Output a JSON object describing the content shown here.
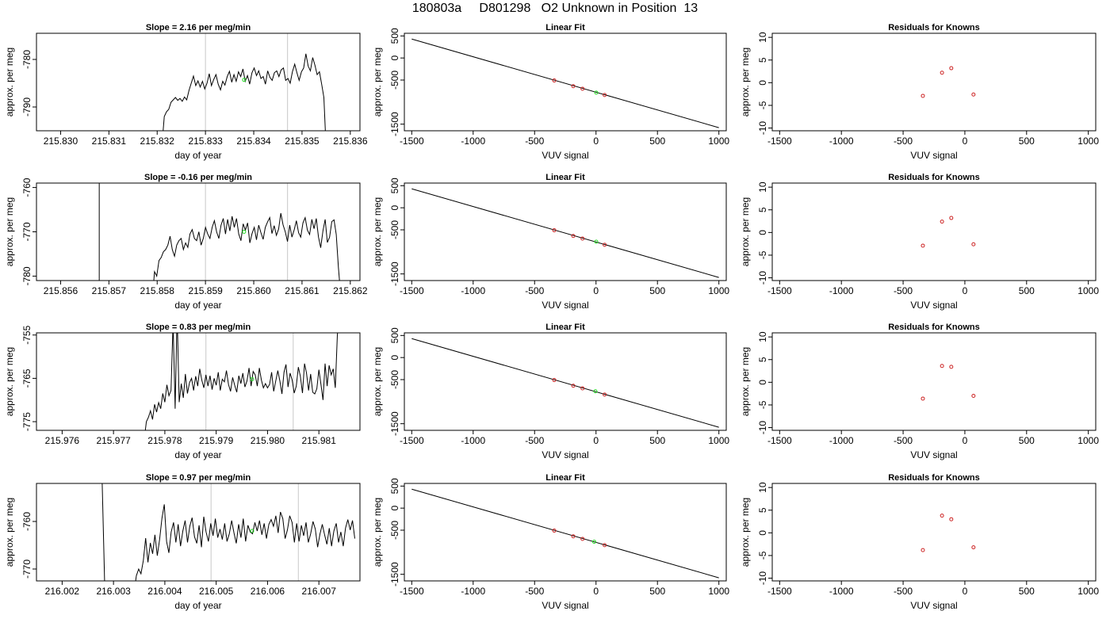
{
  "header": {
    "title": "180803a     D801298   O2 Unknown in Position  13"
  },
  "chart_data": [
    {
      "type": "line",
      "panel": "time-series",
      "row": 0,
      "title": "Slope =  2.16  per meg/min",
      "xlabel": "day of year",
      "ylabel": "approx. per meg",
      "xlim": [
        215.8295,
        215.8362
      ],
      "ylim": [
        -795.0,
        -774.5
      ],
      "xticks": [
        215.83,
        215.831,
        215.832,
        215.833,
        215.834,
        215.835,
        215.836
      ],
      "xtick_labels": [
        "215.830",
        "215.831",
        "215.832",
        "215.833",
        "215.834",
        "215.835",
        "215.836"
      ],
      "yticks": [
        -780,
        -790
      ],
      "ytick_labels": [
        "-780",
        "-790"
      ],
      "vlines": [
        215.833,
        215.8347
      ],
      "x_start": 215.8321,
      "x_end": 215.8355,
      "y": [
        -798,
        -792,
        -791,
        -790.5,
        -789,
        -788.5,
        -788,
        -788.6,
        -788.2,
        -788.8,
        -787.9,
        -788.5,
        -786.5,
        -785,
        -783.5,
        -785.5,
        -784.5,
        -785.8,
        -784.6,
        -786.2,
        -785,
        -783,
        -785.5,
        -784.2,
        -783.2,
        -785.2,
        -786.4,
        -784.6,
        -785.4,
        -783.6,
        -782.5,
        -784.8,
        -783.2,
        -784.6,
        -782.6,
        -783.6,
        -782,
        -784.6,
        -783.4,
        -785.2,
        -782.8,
        -781.8,
        -783.4,
        -782.4,
        -784,
        -783.6,
        -785.2,
        -782.4,
        -783.8,
        -784.4,
        -782.8,
        -782.4,
        -783.6,
        -782.2,
        -781.8,
        -784.4,
        -784,
        -785,
        -782.6,
        -781,
        -782.8,
        -784.4,
        -782.6,
        -781.8,
        -778.8,
        -781.4,
        -782.4,
        -779.6,
        -781.2,
        -783.2,
        -782.6,
        -785.2,
        -788,
        -799
      ],
      "x_end_drop": 215.83555,
      "marker": {
        "x": 215.8338,
        "y": -784.3,
        "color": "#22dd22"
      }
    },
    {
      "type": "scatter",
      "panel": "linear-fit",
      "row": 0,
      "title": "Linear Fit",
      "xlabel": "VUV signal",
      "ylabel": "approx. per meg",
      "xlim": [
        -1560,
        1060
      ],
      "ylim": [
        -1650,
        560
      ],
      "xticks": [
        -1500,
        -1000,
        -500,
        0,
        500,
        1000
      ],
      "xtick_labels": [
        "-1500",
        "-1000",
        "-500",
        "0",
        "500",
        "1000"
      ],
      "yticks": [
        500,
        0,
        -500,
        -1500
      ],
      "ytick_labels": [
        "500",
        "0",
        "-500",
        "-1500"
      ],
      "fit_line": {
        "x": [
          -1500,
          1000
        ],
        "y": [
          430,
          -1580
        ]
      },
      "points": {
        "x": [
          -340,
          -185,
          -110,
          70
        ],
        "y": [
          -510,
          -640,
          -698,
          -840
        ],
        "color": "#cc2222"
      },
      "marker": {
        "x": 2,
        "y": -786,
        "color": "#22dd22"
      }
    },
    {
      "type": "scatter",
      "panel": "residuals",
      "row": 0,
      "title": "Residuals for Knowns",
      "xlabel": "VUV signal",
      "ylabel": "approx. per meg",
      "xlim": [
        -1560,
        1060
      ],
      "ylim": [
        -10.6,
        10.9
      ],
      "xticks": [
        -1500,
        -1000,
        -500,
        0,
        500,
        1000
      ],
      "xtick_labels": [
        "-1500",
        "-1000",
        "-500",
        "0",
        "500",
        "1000"
      ],
      "yticks": [
        10,
        5,
        0,
        -5,
        -10
      ],
      "ytick_labels": [
        "10",
        "5",
        "0",
        "-5",
        "-10"
      ],
      "points": {
        "x": [
          -340,
          -185,
          -110,
          70
        ],
        "y": [
          -2.9,
          2.2,
          3.2,
          -2.6
        ],
        "color": "#cc2222"
      }
    },
    {
      "type": "line",
      "panel": "time-series",
      "row": 1,
      "title": "Slope =  -0.16  per meg/min",
      "xlabel": "day of year",
      "ylabel": "approx. per meg",
      "xlim": [
        215.8555,
        215.8622
      ],
      "ylim": [
        -781.0,
        -759.0
      ],
      "xticks": [
        215.856,
        215.857,
        215.858,
        215.859,
        215.86,
        215.861,
        215.862
      ],
      "xtick_labels": [
        "215.856",
        "215.857",
        "215.858",
        "215.859",
        "215.860",
        "215.861",
        "215.862"
      ],
      "yticks": [
        -760,
        -770,
        -780
      ],
      "ytick_labels": [
        "-760",
        "-770",
        "-780"
      ],
      "vlines": [
        215.859,
        215.8607
      ],
      "spike_x": 215.8568,
      "x_start": 215.8579,
      "x_end": 215.8618,
      "y": [
        -785,
        -779,
        -780,
        -776.5,
        -775.8,
        -774.5,
        -774,
        -773,
        -771,
        -774,
        -775.5,
        -773,
        -772,
        -771.5,
        -774,
        -772.5,
        -773.5,
        -770.5,
        -769.5,
        -771.5,
        -772,
        -770,
        -773,
        -771.5,
        -769,
        -770.5,
        -771.5,
        -769,
        -767.5,
        -770,
        -771.5,
        -768.5,
        -767,
        -770.5,
        -767.2,
        -769.8,
        -766.5,
        -769,
        -767,
        -770.5,
        -772,
        -768.2,
        -769.6,
        -768,
        -772.5,
        -770.4,
        -769,
        -771.8,
        -768.5,
        -770.2,
        -771.7,
        -769,
        -767.8,
        -766.8,
        -770.4,
        -768.6,
        -770.8,
        -769.4,
        -765.8,
        -768.4,
        -770,
        -772.2,
        -768.5,
        -771.2,
        -769.6,
        -767.5,
        -770.2,
        -771.2,
        -768,
        -766.8,
        -769.6,
        -770.6,
        -767.2,
        -769.3,
        -767,
        -771.2,
        -773.6,
        -769.8,
        -767.2,
        -772.4,
        -771.2,
        -767.7,
        -767.3,
        -770.6,
        -778,
        -784
      ],
      "marker": {
        "x": 215.8598,
        "y": -770,
        "color": "#22dd22"
      }
    },
    {
      "type": "scatter",
      "panel": "linear-fit",
      "row": 1,
      "title": "Linear Fit",
      "xlabel": "VUV signal",
      "ylabel": "approx. per meg",
      "xlim": [
        -1560,
        1060
      ],
      "ylim": [
        -1650,
        560
      ],
      "xticks": [
        -1500,
        -1000,
        -500,
        0,
        500,
        1000
      ],
      "xtick_labels": [
        "-1500",
        "-1000",
        "-500",
        "0",
        "500",
        "1000"
      ],
      "yticks": [
        500,
        0,
        -500,
        -1500
      ],
      "ytick_labels": [
        "500",
        "0",
        "-500",
        "-1500"
      ],
      "fit_line": {
        "x": [
          -1500,
          1000
        ],
        "y": [
          430,
          -1580
        ]
      },
      "points": {
        "x": [
          -340,
          -185,
          -110,
          70
        ],
        "y": [
          -510,
          -640,
          -698,
          -840
        ],
        "color": "#cc2222"
      },
      "marker": {
        "x": 2,
        "y": -770,
        "color": "#22dd22"
      }
    },
    {
      "type": "scatter",
      "panel": "residuals",
      "row": 1,
      "title": "Residuals for Knowns",
      "xlabel": "VUV signal",
      "ylabel": "approx. per meg",
      "xlim": [
        -1560,
        1060
      ],
      "ylim": [
        -10.6,
        10.9
      ],
      "xticks": [
        -1500,
        -1000,
        -500,
        0,
        500,
        1000
      ],
      "xtick_labels": [
        "-1500",
        "-1000",
        "-500",
        "0",
        "500",
        "1000"
      ],
      "yticks": [
        10,
        5,
        0,
        -5,
        -10
      ],
      "ytick_labels": [
        "10",
        "5",
        "0",
        "-5",
        "-10"
      ],
      "points": {
        "x": [
          -340,
          -185,
          -110,
          70
        ],
        "y": [
          -2.9,
          2.4,
          3.2,
          -2.6
        ],
        "color": "#cc2222"
      }
    },
    {
      "type": "line",
      "panel": "time-series",
      "row": 2,
      "title": "Slope =  0.83  per meg/min",
      "xlabel": "day of year",
      "ylabel": "approx. per meg",
      "xlim": [
        215.9755,
        215.9818
      ],
      "ylim": [
        -777.0,
        -754.5
      ],
      "xticks": [
        215.976,
        215.977,
        215.978,
        215.979,
        215.98,
        215.981
      ],
      "xtick_labels": [
        "215.976",
        "215.977",
        "215.978",
        "215.979",
        "215.980",
        "215.981"
      ],
      "yticks": [
        -755,
        -765,
        -775
      ],
      "ytick_labels": [
        "-755",
        "-765",
        "-775"
      ],
      "vlines": [
        215.9788,
        215.9805
      ],
      "x_start": 215.9776,
      "x_end": 215.9814,
      "y": [
        -779,
        -775,
        -774,
        -772.5,
        -774.5,
        -771,
        -772.8,
        -770.6,
        -772,
        -768.5,
        -770.5,
        -766.5,
        -769,
        -767.8,
        -752,
        -772,
        -750,
        -770.5,
        -766.2,
        -769.5,
        -764,
        -768.5,
        -766,
        -765,
        -767.8,
        -764.5,
        -766.8,
        -762.8,
        -765.4,
        -767.2,
        -764.2,
        -766.8,
        -764.4,
        -767.6,
        -765,
        -766.6,
        -763.6,
        -767.8,
        -765.2,
        -765.8,
        -763.2,
        -766.4,
        -768,
        -764.8,
        -766.6,
        -768.2,
        -764.4,
        -766.2,
        -763.8,
        -767,
        -765.6,
        -762.6,
        -766.8,
        -763.4,
        -764.2,
        -766.8,
        -762.6,
        -765.4,
        -767.2,
        -766.2,
        -767.2,
        -766.4,
        -763.6,
        -768,
        -765.6,
        -763.2,
        -765.6,
        -768.6,
        -763.6,
        -761.8,
        -767,
        -763.8,
        -765.4,
        -768.4,
        -766.8,
        -762.4,
        -764.6,
        -768.4,
        -761.6,
        -763.8,
        -767.8,
        -764,
        -768.2,
        -768.6,
        -767.4,
        -763,
        -766.4,
        -770,
        -761.6,
        -766.8,
        -762,
        -764.2,
        -762.8,
        -767.2,
        -755,
        -750
      ],
      "marker": {
        "x": 215.9797,
        "y": -765.2,
        "color": "#22dd22"
      }
    },
    {
      "type": "scatter",
      "panel": "linear-fit",
      "row": 2,
      "title": "Linear Fit",
      "xlabel": "VUV signal",
      "ylabel": "approx. per meg",
      "xlim": [
        -1560,
        1060
      ],
      "ylim": [
        -1650,
        560
      ],
      "xticks": [
        -1500,
        -1000,
        -500,
        0,
        500,
        1000
      ],
      "xtick_labels": [
        "-1500",
        "-1000",
        "-500",
        "0",
        "500",
        "1000"
      ],
      "yticks": [
        500,
        0,
        -500,
        -1500
      ],
      "ytick_labels": [
        "500",
        "0",
        "-500",
        "-1500"
      ],
      "fit_line": {
        "x": [
          -1500,
          1000
        ],
        "y": [
          430,
          -1580
        ]
      },
      "points": {
        "x": [
          -340,
          -185,
          -110,
          70
        ],
        "y": [
          -510,
          -640,
          -698,
          -840
        ],
        "color": "#cc2222"
      },
      "marker": {
        "x": -5,
        "y": -765,
        "color": "#22dd22"
      }
    },
    {
      "type": "scatter",
      "panel": "residuals",
      "row": 2,
      "title": "Residuals for Knowns",
      "xlabel": "VUV signal",
      "ylabel": "approx. per meg",
      "xlim": [
        -1560,
        1060
      ],
      "ylim": [
        -10.6,
        10.9
      ],
      "xticks": [
        -1500,
        -1000,
        -500,
        0,
        500,
        1000
      ],
      "xtick_labels": [
        "-1500",
        "-1000",
        "-500",
        "0",
        "500",
        "1000"
      ],
      "yticks": [
        10,
        5,
        0,
        -5,
        -10
      ],
      "ytick_labels": [
        "10",
        "5",
        "0",
        "-5",
        "-10"
      ],
      "points": {
        "x": [
          -340,
          -185,
          -110,
          70
        ],
        "y": [
          -3.6,
          3.6,
          3.4,
          -3.0
        ],
        "color": "#cc2222"
      }
    },
    {
      "type": "line",
      "panel": "time-series",
      "row": 3,
      "title": "Slope =  0.97  per meg/min",
      "xlabel": "day of year",
      "ylabel": "approx. per meg",
      "xlim": [
        216.0015,
        216.0078
      ],
      "ylim": [
        -772.5,
        -752.0
      ],
      "xticks": [
        216.002,
        216.003,
        216.004,
        216.005,
        216.006,
        216.007
      ],
      "xtick_labels": [
        "216.002",
        "216.003",
        "216.004",
        "216.005",
        "216.006",
        "216.007"
      ],
      "yticks": [
        -760,
        -770
      ],
      "ytick_labels": [
        "-760",
        "-770"
      ],
      "vlines": [
        216.0049,
        216.0066
      ],
      "spike": {
        "x": [
          216.00278,
          216.00283
        ],
        "y": [
          -752,
          -774
        ]
      },
      "x_start": 216.0034,
      "x_end": 216.0077,
      "y": [
        -775,
        -771.4,
        -770,
        -771,
        -768.2,
        -763.5,
        -768.6,
        -764.5,
        -766.8,
        -762.8,
        -767.2,
        -763.8,
        -759.4,
        -756.4,
        -764.2,
        -766.6,
        -762.2,
        -760.2,
        -764.4,
        -760.6,
        -765.2,
        -762,
        -759.8,
        -764.4,
        -761,
        -759.2,
        -763.2,
        -764.6,
        -760.8,
        -765.4,
        -759,
        -762.2,
        -764.2,
        -760.4,
        -763,
        -759.4,
        -763.4,
        -761.6,
        -763.8,
        -760.4,
        -764.2,
        -762.6,
        -759.8,
        -762.4,
        -764.6,
        -760.6,
        -763.4,
        -759.4,
        -764.2,
        -760.8,
        -762.2,
        -762.6,
        -760.2,
        -762,
        -759.8,
        -762.8,
        -760.4,
        -763.6,
        -760.6,
        -759.6,
        -761,
        -758.8,
        -762.4,
        -758,
        -759.4,
        -763.6,
        -761.8,
        -758.8,
        -760.2,
        -764.4,
        -760.4,
        -764.2,
        -760.8,
        -763,
        -760.2,
        -764.4,
        -762.6,
        -760,
        -761.6,
        -765.4,
        -762.6,
        -760.6,
        -762.8,
        -764.8,
        -761.4,
        -765.2,
        -762,
        -760.4,
        -764.4,
        -762.2,
        -765.2,
        -761.4,
        -759.6,
        -761.8,
        -759.8,
        -763.6
      ],
      "marker": {
        "x": 216.0057,
        "y": -762,
        "color": "#22dd22"
      }
    },
    {
      "type": "scatter",
      "panel": "linear-fit",
      "row": 3,
      "title": "Linear Fit",
      "xlabel": "VUV signal",
      "ylabel": "approx. per meg",
      "xlim": [
        -1560,
        1060
      ],
      "ylim": [
        -1650,
        560
      ],
      "xticks": [
        -1500,
        -1000,
        -500,
        0,
        500,
        1000
      ],
      "xtick_labels": [
        "-1500",
        "-1000",
        "-500",
        "0",
        "500",
        "1000"
      ],
      "yticks": [
        500,
        0,
        -500,
        -1500
      ],
      "ytick_labels": [
        "500",
        "0",
        "-500",
        "-1500"
      ],
      "fit_line": {
        "x": [
          -1500,
          1000
        ],
        "y": [
          430,
          -1580
        ]
      },
      "points": {
        "x": [
          -340,
          -185,
          -110,
          70
        ],
        "y": [
          -510,
          -640,
          -698,
          -840
        ],
        "color": "#cc2222"
      },
      "marker": {
        "x": -15,
        "y": -762,
        "color": "#22dd22"
      }
    },
    {
      "type": "scatter",
      "panel": "residuals",
      "row": 3,
      "title": "Residuals for Knowns",
      "xlabel": "VUV signal",
      "ylabel": "approx. per meg",
      "xlim": [
        -1560,
        1060
      ],
      "ylim": [
        -10.6,
        10.9
      ],
      "xticks": [
        -1500,
        -1000,
        -500,
        0,
        500,
        1000
      ],
      "xtick_labels": [
        "-1500",
        "-1000",
        "-500",
        "0",
        "500",
        "1000"
      ],
      "yticks": [
        10,
        5,
        0,
        -5,
        -10
      ],
      "ytick_labels": [
        "10",
        "5",
        "0",
        "-5",
        "-10"
      ],
      "points": {
        "x": [
          -340,
          -185,
          -110,
          70
        ],
        "y": [
          -3.8,
          3.8,
          3.0,
          -3.2
        ],
        "color": "#cc2222"
      }
    }
  ]
}
